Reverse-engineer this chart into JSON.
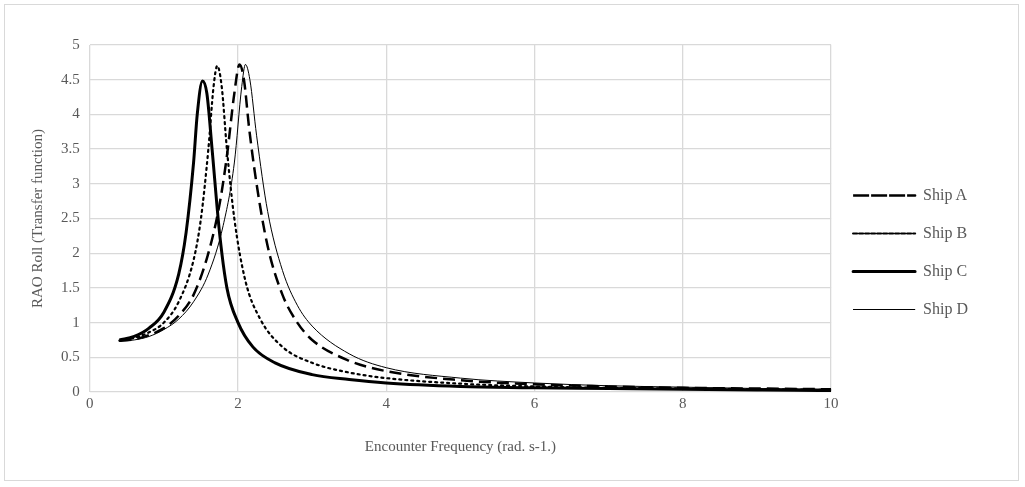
{
  "chart_data": {
    "type": "line",
    "xlabel": "Encounter Frequency (rad. s-1.)",
    "ylabel": "RAO Roll (Transfer function)",
    "xlim": [
      0,
      10
    ],
    "xticks": [
      0,
      2,
      4,
      6,
      8,
      10
    ],
    "ylim": [
      0,
      5
    ],
    "yticks": [
      0,
      0.5,
      1,
      1.5,
      2,
      2.5,
      3,
      3.5,
      4,
      4.5,
      5
    ],
    "grid": true,
    "legend": "right",
    "marker": "none",
    "series": [
      {
        "name": "Ship A",
        "color": "#000000",
        "line_style": "dashed",
        "x": [
          0.4,
          0.6,
          0.8,
          1.0,
          1.2,
          1.4,
          1.6,
          1.75,
          1.85,
          1.95,
          2.02,
          2.08,
          2.15,
          2.25,
          2.4,
          2.6,
          2.8,
          3.0,
          3.5,
          4,
          5,
          6,
          7,
          8,
          9,
          10
        ],
        "values": [
          0.74,
          0.76,
          0.82,
          0.92,
          1.1,
          1.4,
          2.0,
          2.7,
          3.4,
          4.3,
          4.72,
          4.5,
          3.8,
          3.0,
          2.1,
          1.4,
          1.0,
          0.75,
          0.45,
          0.3,
          0.17,
          0.11,
          0.08,
          0.06,
          0.05,
          0.04
        ]
      },
      {
        "name": "Ship B",
        "color": "#000000",
        "line_style": "dotted",
        "x": [
          0.4,
          0.6,
          0.8,
          1.0,
          1.2,
          1.4,
          1.5,
          1.6,
          1.67,
          1.72,
          1.78,
          1.85,
          1.95,
          2.1,
          2.3,
          2.6,
          3.0,
          3.5,
          4,
          5,
          6,
          7,
          8,
          9,
          10
        ],
        "values": [
          0.74,
          0.78,
          0.86,
          1.0,
          1.3,
          1.9,
          2.5,
          3.5,
          4.4,
          4.7,
          4.4,
          3.5,
          2.5,
          1.6,
          1.05,
          0.65,
          0.42,
          0.28,
          0.2,
          0.12,
          0.08,
          0.06,
          0.05,
          0.04,
          0.03
        ]
      },
      {
        "name": "Ship C",
        "color": "#000000",
        "line_style": "solid",
        "x": [
          0.4,
          0.6,
          0.8,
          1.0,
          1.2,
          1.3,
          1.4,
          1.45,
          1.52,
          1.58,
          1.65,
          1.75,
          1.85,
          2.0,
          2.2,
          2.5,
          3.0,
          3.5,
          4,
          5,
          6,
          7,
          8,
          9,
          10
        ],
        "values": [
          0.75,
          0.8,
          0.92,
          1.15,
          1.7,
          2.3,
          3.3,
          4.0,
          4.48,
          4.3,
          3.5,
          2.3,
          1.5,
          1.0,
          0.65,
          0.42,
          0.25,
          0.18,
          0.13,
          0.08,
          0.06,
          0.05,
          0.04,
          0.03,
          0.02
        ]
      },
      {
        "name": "Ship D",
        "color": "#000000",
        "line_style": "solid",
        "x": [
          0.4,
          0.6,
          0.8,
          1.0,
          1.2,
          1.4,
          1.6,
          1.8,
          1.95,
          2.05,
          2.1,
          2.16,
          2.25,
          2.4,
          2.6,
          2.8,
          3.0,
          3.5,
          4,
          5,
          6,
          7,
          8,
          9,
          10
        ],
        "values": [
          0.73,
          0.75,
          0.8,
          0.9,
          1.05,
          1.3,
          1.7,
          2.4,
          3.3,
          4.4,
          4.72,
          4.5,
          3.7,
          2.6,
          1.75,
          1.25,
          0.95,
          0.55,
          0.35,
          0.2,
          0.13,
          0.09,
          0.07,
          0.05,
          0.04
        ]
      }
    ]
  }
}
